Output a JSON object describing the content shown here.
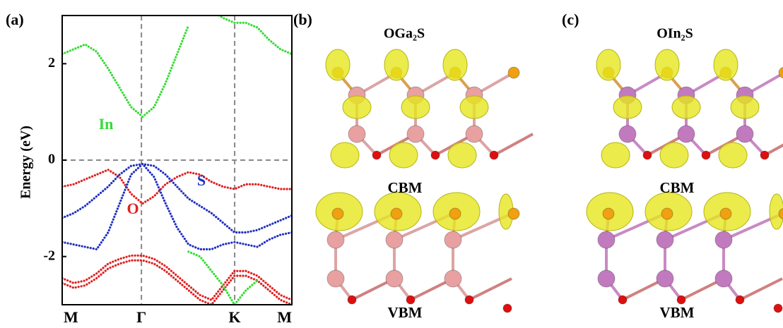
{
  "chart_data": {
    "type": "line",
    "panel_label": "(a)",
    "ylabel": "Energy (eV)",
    "xlim": [
      0,
      1
    ],
    "ylim": [
      -3,
      3
    ],
    "xticks": [
      {
        "value": 0,
        "label": "M"
      },
      {
        "value": 0.345,
        "label": "Γ"
      },
      {
        "value": 0.751,
        "label": "K"
      },
      {
        "value": 1,
        "label": "M"
      }
    ],
    "yticks": [
      -2,
      0,
      2
    ],
    "x": [
      0,
      0.05,
      0.1,
      0.15,
      0.2,
      0.25,
      0.3,
      0.35,
      0.4,
      0.45,
      0.5,
      0.55,
      0.6,
      0.65,
      0.7,
      0.75,
      0.8,
      0.85,
      0.9,
      0.95,
      1
    ],
    "series": [
      {
        "color": "#33dd33",
        "values": [
          2.2,
          2.3,
          2.4,
          2.25,
          1.9,
          1.5,
          1.1,
          0.9,
          1.1,
          1.6,
          2.2,
          2.8,
          null,
          3.1,
          2.95,
          2.85,
          2.85,
          2.75,
          2.5,
          2.3,
          2.2
        ]
      },
      {
        "color": "#e02020",
        "values": [
          -0.55,
          -0.5,
          -0.4,
          -0.3,
          -0.2,
          -0.35,
          -0.7,
          -0.9,
          -0.75,
          -0.5,
          -0.35,
          -0.25,
          -0.3,
          -0.45,
          -0.55,
          -0.6,
          -0.5,
          -0.5,
          -0.55,
          -0.6,
          -0.6
        ]
      },
      {
        "color": "#2030c0",
        "values": [
          -1.2,
          -1.1,
          -0.95,
          -0.75,
          -0.55,
          -0.3,
          -0.12,
          -0.08,
          -0.12,
          -0.3,
          -0.55,
          -0.8,
          -0.95,
          -1.1,
          -1.3,
          -1.5,
          -1.5,
          -1.45,
          -1.35,
          -1.25,
          -1.15
        ]
      },
      {
        "color": "#2030c0",
        "values": [
          -1.7,
          -1.75,
          -1.8,
          -1.85,
          -1.5,
          -0.9,
          -0.3,
          -0.08,
          -0.35,
          -0.9,
          -1.4,
          -1.75,
          -1.85,
          -1.85,
          -1.75,
          -1.7,
          -1.75,
          -1.8,
          -1.65,
          -1.55,
          -1.5
        ]
      },
      {
        "color": "#e02020",
        "values": [
          -2.45,
          -2.55,
          -2.5,
          -2.35,
          -2.15,
          -2.05,
          -1.98,
          -1.98,
          -2.05,
          -2.2,
          -2.4,
          -2.6,
          -2.8,
          -2.9,
          -2.6,
          -2.3,
          -2.3,
          -2.4,
          -2.6,
          -2.8,
          -2.9
        ]
      },
      {
        "color": "#e02020",
        "values": [
          -2.55,
          -2.65,
          -2.6,
          -2.45,
          -2.25,
          -2.15,
          -2.08,
          -2.08,
          -2.15,
          -2.3,
          -2.5,
          -2.7,
          -2.9,
          -3.0,
          -2.7,
          -2.4,
          -2.4,
          -2.5,
          -2.7,
          -2.9,
          -3.0
        ]
      },
      {
        "color": "#33dd33",
        "values": [
          null,
          null,
          null,
          null,
          null,
          null,
          null,
          null,
          null,
          null,
          null,
          -1.9,
          -2.0,
          -2.3,
          -2.6,
          -3.0,
          -2.7,
          -2.5,
          null,
          null,
          null
        ]
      }
    ],
    "annotations": [
      {
        "text": "In",
        "color": "#33dd33"
      },
      {
        "text": "O",
        "color": "#e02020"
      },
      {
        "text": "S",
        "color": "#2030c0"
      }
    ]
  },
  "panels": [
    {
      "label": "(b)",
      "title": "OGa₂S",
      "cbm": "CBM",
      "vbm": "VBM"
    },
    {
      "label": "(c)",
      "title": "OIn₂S",
      "cbm": "CBM",
      "vbm": "VBM"
    }
  ]
}
